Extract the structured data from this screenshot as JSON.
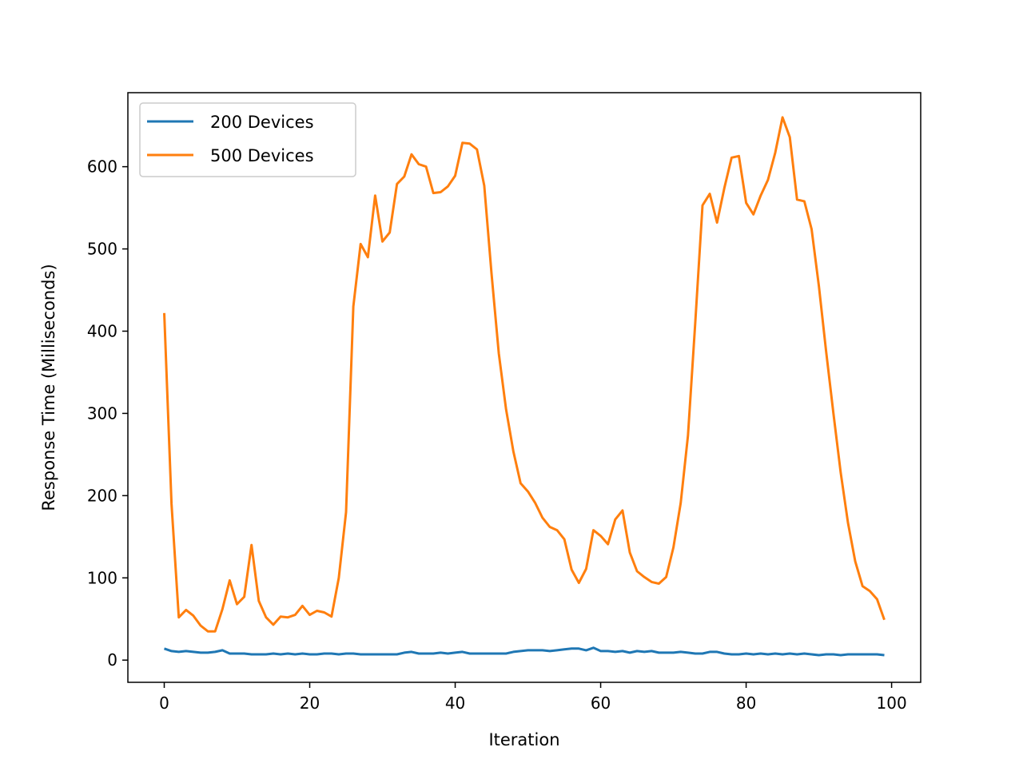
{
  "chart_data": {
    "type": "line",
    "xlabel": "Iteration",
    "ylabel": "Response Time (Milliseconds)",
    "xlim": [
      -5,
      104
    ],
    "ylim": [
      -27,
      690
    ],
    "xticks": [
      0,
      20,
      40,
      60,
      80,
      100
    ],
    "yticks": [
      0,
      100,
      200,
      300,
      400,
      500,
      600
    ],
    "grid": false,
    "legend_position": "upper-left",
    "x": [
      0,
      1,
      2,
      3,
      4,
      5,
      6,
      7,
      8,
      9,
      10,
      11,
      12,
      13,
      14,
      15,
      16,
      17,
      18,
      19,
      20,
      21,
      22,
      23,
      24,
      25,
      26,
      27,
      28,
      29,
      30,
      31,
      32,
      33,
      34,
      35,
      36,
      37,
      38,
      39,
      40,
      41,
      42,
      43,
      44,
      45,
      46,
      47,
      48,
      49,
      50,
      51,
      52,
      53,
      54,
      55,
      56,
      57,
      58,
      59,
      60,
      61,
      62,
      63,
      64,
      65,
      66,
      67,
      68,
      69,
      70,
      71,
      72,
      73,
      74,
      75,
      76,
      77,
      78,
      79,
      80,
      81,
      82,
      83,
      84,
      85,
      86,
      87,
      88,
      89,
      90,
      91,
      92,
      93,
      94,
      95,
      96,
      97,
      98,
      99
    ],
    "series": [
      {
        "name": "200 Devices",
        "color": "#1f77b4",
        "values": [
          14,
          11,
          10,
          11,
          10,
          9,
          9,
          10,
          12,
          8,
          8,
          8,
          7,
          7,
          7,
          8,
          7,
          8,
          7,
          8,
          7,
          7,
          8,
          8,
          7,
          8,
          8,
          7,
          7,
          7,
          7,
          7,
          7,
          9,
          10,
          8,
          8,
          8,
          9,
          8,
          9,
          10,
          8,
          8,
          8,
          8,
          8,
          8,
          10,
          11,
          12,
          12,
          12,
          11,
          12,
          13,
          14,
          14,
          12,
          15,
          11,
          11,
          10,
          11,
          9,
          11,
          10,
          11,
          9,
          9,
          9,
          10,
          9,
          8,
          8,
          10,
          10,
          8,
          7,
          7,
          8,
          7,
          8,
          7,
          8,
          7,
          8,
          7,
          8,
          7,
          6,
          7,
          7,
          6,
          7,
          7,
          7,
          7,
          7,
          6
        ]
      },
      {
        "name": "500 Devices",
        "color": "#ff7f0e",
        "values": [
          422,
          190,
          52,
          61,
          54,
          42,
          35,
          35,
          62,
          97,
          68,
          77,
          140,
          72,
          52,
          43,
          53,
          52,
          55,
          66,
          55,
          60,
          58,
          53,
          100,
          180,
          430,
          506,
          490,
          565,
          509,
          520,
          579,
          588,
          615,
          603,
          600,
          568,
          569,
          576,
          589,
          629,
          628,
          621,
          577,
          470,
          373,
          305,
          254,
          215,
          205,
          191,
          173,
          162,
          158,
          147,
          110,
          94,
          111,
          158,
          151,
          141,
          171,
          182,
          131,
          108,
          101,
          95,
          93,
          101,
          137,
          191,
          273,
          410,
          553,
          567,
          532,
          574,
          611,
          613,
          556,
          542,
          565,
          584,
          617,
          660,
          636,
          560,
          558,
          524,
          455,
          375,
          300,
          228,
          167,
          120,
          90,
          84,
          74,
          49
        ]
      }
    ]
  }
}
